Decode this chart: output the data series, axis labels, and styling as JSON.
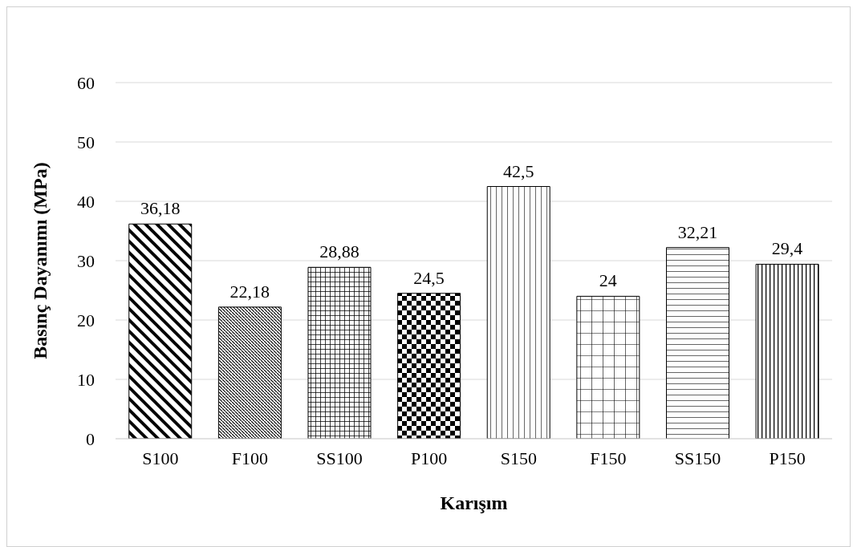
{
  "chart_data": {
    "type": "bar",
    "xlabel": "Karışım",
    "ylabel": "Basınç Dayanımı (MPa)",
    "categories": [
      "S100",
      "F100",
      "SS100",
      "P100",
      "S150",
      "F150",
      "SS150",
      "P150"
    ],
    "values": [
      36.18,
      22.18,
      28.88,
      24.5,
      42.5,
      24,
      32.21,
      29.4
    ],
    "value_labels": [
      "36,18",
      "22,18",
      "28,88",
      "24,5",
      "42,5",
      "24",
      "32,21",
      "29,4"
    ],
    "color": "#000000",
    "ylim": [
      0,
      60
    ],
    "yticks": [
      0,
      10,
      20,
      30,
      40,
      50,
      60
    ],
    "grid": "y"
  }
}
